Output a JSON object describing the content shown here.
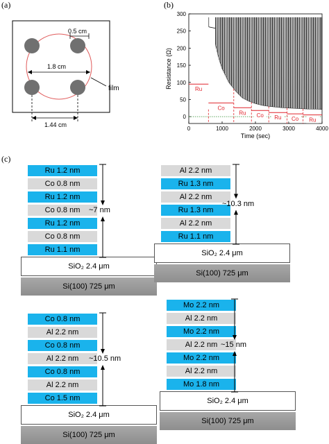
{
  "panel_labels": {
    "a": "(a)",
    "b": "(b)",
    "c": "(c)"
  },
  "panel_a": {
    "dim_pad": "0.5 cm",
    "dim_circle": "1.8 cm",
    "dim_spacing": "1.44 cm",
    "film_label": "film"
  },
  "panel_b": {
    "ylabel": "Resistance (Ω)",
    "xlabel": "Time (sec)",
    "yticks": [
      "0",
      "50",
      "100",
      "150",
      "200",
      "250",
      "300"
    ],
    "xticks": [
      "0",
      "1000",
      "2000",
      "3000",
      "4000"
    ],
    "segment_labels": [
      "Ru",
      "Co",
      "Ru",
      "Co",
      "Ru",
      "Co",
      "Ru"
    ],
    "colors": {
      "trace": "#000000",
      "segments": "#e0242b",
      "baseline": "#2e8b2e"
    }
  },
  "chart_data": {
    "type": "line",
    "xlabel": "Time (sec)",
    "ylabel": "Resistance (Ω)",
    "xlim": [
      0,
      4000
    ],
    "ylim": [
      -20,
      300
    ],
    "xticks": [
      0,
      1000,
      2000,
      3000,
      4000
    ],
    "yticks": [
      0,
      50,
      100,
      150,
      200,
      250,
      300
    ],
    "envelope": {
      "x": [
        600,
        650,
        700,
        800,
        900,
        1000,
        1200,
        1400,
        1600,
        1800,
        2000,
        2200,
        2400,
        2600,
        2800,
        3000,
        3200,
        3400,
        3600,
        3800,
        4000
      ],
      "y": [
        270,
        258,
        250,
        210,
        170,
        140,
        100,
        75,
        55,
        45,
        38,
        33,
        30,
        28,
        26,
        25,
        24,
        23,
        22,
        22,
        21
      ]
    },
    "pre_deposition": {
      "x": [
        600,
        800
      ],
      "y": [
        262,
        258
      ]
    },
    "spike_top": 290,
    "segments": [
      {
        "label": "Ru",
        "x": [
          0,
          590
        ],
        "y": 95
      },
      {
        "label": "Co",
        "x": [
          590,
          1350
        ],
        "y": 40
      },
      {
        "label": "Ru",
        "x": [
          1350,
          1880
        ],
        "y": 26
      },
      {
        "label": "Co",
        "x": [
          1880,
          2400
        ],
        "y": 18
      },
      {
        "label": "Ru",
        "x": [
          2400,
          2950
        ],
        "y": 12
      },
      {
        "label": "Co",
        "x": [
          2950,
          3430
        ],
        "y": 8
      },
      {
        "label": "Ru",
        "x": [
          3430,
          4000
        ],
        "y": 5
      }
    ],
    "segment_boundaries": [
      590,
      1350,
      1880,
      2400,
      2950,
      3430
    ]
  },
  "stacks": [
    {
      "layers": [
        {
          "text": "Ru  1.2 nm",
          "type": "ru"
        },
        {
          "text": "Co  0.8 nm",
          "type": "grey"
        },
        {
          "text": "Ru  1.2 nm",
          "type": "ru"
        },
        {
          "text": "Co  0.8 nm",
          "type": "grey"
        },
        {
          "text": "Ru  1.2 nm",
          "type": "ru"
        },
        {
          "text": "Co  0.8 nm",
          "type": "grey"
        },
        {
          "text": "Ru  1.1 nm",
          "type": "ru"
        }
      ],
      "thickness": "~7 nm",
      "sio2": "SiO₂ 2.4 μm",
      "si": "Si(100) 725 μm"
    },
    {
      "layers": [
        {
          "text": "Al  2.2 nm",
          "type": "grey"
        },
        {
          "text": "Ru  1.3 nm",
          "type": "ru"
        },
        {
          "text": "Al  2.2 nm",
          "type": "grey"
        },
        {
          "text": "Ru  1.3 nm",
          "type": "ru"
        },
        {
          "text": "Al  2.2 nm",
          "type": "grey"
        },
        {
          "text": "Ru  1.1 nm",
          "type": "ru"
        }
      ],
      "thickness": "~10.3 nm",
      "sio2": "SiO₂ 2.4 μm",
      "si": "Si(100) 725 μm"
    },
    {
      "layers": [
        {
          "text": "Co  0.8 nm",
          "type": "co-blue"
        },
        {
          "text": "Al  2.2 nm",
          "type": "grey"
        },
        {
          "text": "Co  0.8 nm",
          "type": "co-blue"
        },
        {
          "text": "Al  2.2 nm",
          "type": "grey"
        },
        {
          "text": "Co  0.8 nm",
          "type": "co-blue"
        },
        {
          "text": "Al  2.2 nm",
          "type": "grey"
        },
        {
          "text": "Co  1.5 nm",
          "type": "co-blue"
        }
      ],
      "thickness": "~10.5 nm",
      "sio2": "SiO₂ 2.4 μm",
      "si": "Si(100) 725 μm"
    },
    {
      "layers": [
        {
          "text": "Mo  2.2 nm",
          "type": "mo"
        },
        {
          "text": "Al  2.2 nm",
          "type": "grey"
        },
        {
          "text": "Mo  2.2 nm",
          "type": "mo"
        },
        {
          "text": "Al  2.2 nm",
          "type": "grey"
        },
        {
          "text": "Mo  2.2 nm",
          "type": "mo"
        },
        {
          "text": "Al  2.2 nm",
          "type": "grey"
        },
        {
          "text": "Mo  1.8 nm",
          "type": "mo"
        }
      ],
      "thickness": "~15 nm",
      "sio2": "SiO₂ 2.4 μm",
      "si": "Si(100) 725 μm"
    }
  ]
}
